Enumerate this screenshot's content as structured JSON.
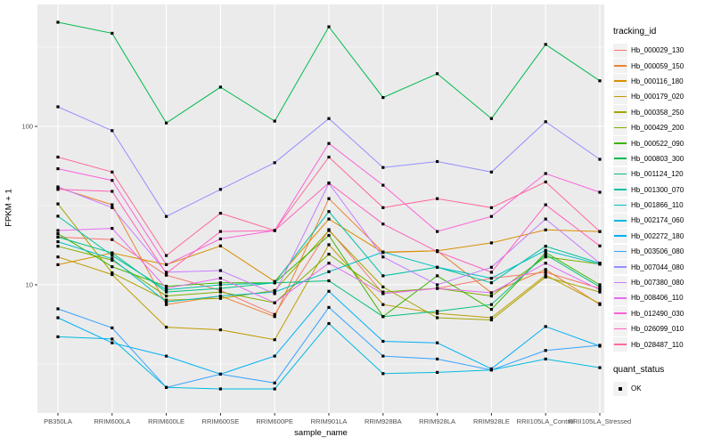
{
  "chart": {
    "panel_bg": "#EBEBEB",
    "grid_color": "#FFFFFF",
    "tick_color": "#333333",
    "tick_label_color": "#4D4D4D",
    "legend_key_bg": "#F2F2F2",
    "point_color": "#000000"
  },
  "chart_data": {
    "type": "line",
    "title": "",
    "xlabel": "sample_name",
    "ylabel": "FPKM + 1",
    "y_scale": "log10",
    "ylim": [
      1.55,
      588
    ],
    "y_ticks": [
      100,
      10
    ],
    "y_minor": [
      316.2,
      31.62,
      3.162
    ],
    "grid": true,
    "legend_position": "right",
    "legend_title": "tracking_id",
    "point_legend": {
      "title": "quant_status",
      "label": "OK",
      "shape": "black-square"
    },
    "categories": [
      "PB350LA",
      "RRIM600LA",
      "RRIM600LE",
      "RRIM600SE",
      "RRIM600PE",
      "RRIM901LA",
      "RRIM928BA",
      "RRIM928LA",
      "RRIM928LE",
      "RRII105LA_Control",
      "RRII105LA_Stressed"
    ],
    "series": [
      {
        "name": "Hb_000029_130",
        "color": "#F8766D",
        "values": [
          20.0,
          19.3,
          11.5,
          9.2,
          6.5,
          22.3,
          8.8,
          9.5,
          11.0,
          12.0,
          9.5
        ]
      },
      {
        "name": "Hb_000059_150",
        "color": "#EA8331",
        "values": [
          41.0,
          32.0,
          7.5,
          8.5,
          6.3,
          35.0,
          16.1,
          16.4,
          8.9,
          12.5,
          7.5
        ]
      },
      {
        "name": "Hb_000116_180",
        "color": "#D89000",
        "values": [
          13.4,
          15.9,
          13.4,
          17.6,
          10.5,
          26.0,
          16.0,
          16.4,
          18.4,
          22.2,
          21.7
        ]
      },
      {
        "name": "Hb_000179_020",
        "color": "#C09B00",
        "values": [
          15.0,
          11.6,
          5.4,
          5.2,
          4.5,
          17.9,
          7.5,
          6.6,
          6.2,
          11.5,
          7.6
        ]
      },
      {
        "name": "Hb_000358_250",
        "color": "#A3A500",
        "values": [
          32.4,
          11.9,
          8.0,
          8.2,
          9.2,
          22.0,
          9.7,
          6.2,
          6.0,
          11.2,
          9.0
        ]
      },
      {
        "name": "Hb_000429_200",
        "color": "#7CAE00",
        "values": [
          17.5,
          14.3,
          8.5,
          9.0,
          7.7,
          15.6,
          9.0,
          9.5,
          8.5,
          15.0,
          13.5
        ]
      },
      {
        "name": "Hb_000522_090",
        "color": "#39B600",
        "values": [
          21.0,
          13.0,
          9.8,
          10.3,
          10.3,
          20.5,
          6.3,
          11.4,
          7.0,
          16.0,
          10.0
        ]
      },
      {
        "name": "Hb_000803_300",
        "color": "#00BB4E",
        "values": [
          454,
          387,
          105,
          177,
          108,
          425,
          152,
          215,
          112,
          329,
          194
        ]
      },
      {
        "name": "Hb_001124_120",
        "color": "#00BF7D",
        "values": [
          20.0,
          15.9,
          9.0,
          9.5,
          10.3,
          10.6,
          6.3,
          6.8,
          7.5,
          15.5,
          9.7
        ]
      },
      {
        "name": "Hb_001300_070",
        "color": "#00C1A3",
        "values": [
          27.1,
          15.3,
          9.3,
          10.0,
          10.3,
          29.0,
          11.4,
          12.9,
          10.3,
          17.5,
          13.7
        ]
      },
      {
        "name": "Hb_001866_110",
        "color": "#00BFC4",
        "values": [
          18.7,
          14.6,
          7.8,
          8.5,
          9.0,
          12.1,
          16.1,
          12.9,
          11.0,
          16.5,
          13.5
        ]
      },
      {
        "name": "Hb_002174_060",
        "color": "#00BAE0",
        "values": [
          4.7,
          4.55,
          2.25,
          2.2,
          2.2,
          5.7,
          2.75,
          2.8,
          2.9,
          3.4,
          3.0
        ]
      },
      {
        "name": "Hb_002272_180",
        "color": "#00B0F6",
        "values": [
          6.2,
          4.3,
          3.55,
          2.73,
          3.55,
          9.1,
          4.4,
          4.3,
          2.95,
          5.45,
          4.1
        ]
      },
      {
        "name": "Hb_003506_080",
        "color": "#35A2FF",
        "values": [
          7.05,
          5.35,
          2.25,
          2.73,
          2.4,
          7.2,
          3.55,
          3.4,
          2.9,
          3.85,
          4.15
        ]
      },
      {
        "name": "Hb_007044_080",
        "color": "#9590FF",
        "values": [
          133,
          94,
          27,
          40,
          59,
          112,
          55,
          60,
          51.5,
          107,
          62
        ]
      },
      {
        "name": "Hb_007380_080",
        "color": "#C77CFF",
        "values": [
          41.5,
          30.7,
          12.0,
          12.3,
          8.8,
          43.7,
          15.0,
          10.0,
          12.9,
          26.0,
          13.7
        ]
      },
      {
        "name": "Hb_008406_110",
        "color": "#E76BF3",
        "values": [
          22.0,
          22.7,
          9.5,
          11.0,
          7.7,
          13.7,
          8.8,
          9.5,
          8.9,
          13.7,
          9.3
        ]
      },
      {
        "name": "Hb_012490_030",
        "color": "#FA62DB",
        "values": [
          54,
          45.6,
          13.4,
          19.5,
          22.0,
          78,
          42.5,
          21.7,
          27.0,
          50.4,
          38.4
        ]
      },
      {
        "name": "Hb_026099_010",
        "color": "#FF62BC",
        "values": [
          40,
          38.9,
          11.8,
          21.7,
          22.0,
          44,
          24.2,
          16.2,
          12.0,
          32.0,
          17.6
        ]
      },
      {
        "name": "Hb_028487_110",
        "color": "#FF6A98",
        "values": [
          64,
          51.5,
          15.3,
          28.3,
          22.0,
          64,
          30.7,
          35.0,
          30.7,
          44.6,
          21.7
        ]
      }
    ]
  }
}
